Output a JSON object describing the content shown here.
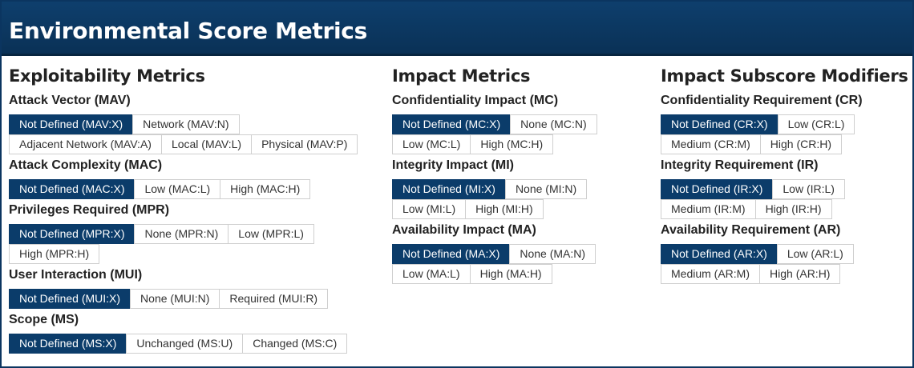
{
  "title": "Environmental Score Metrics",
  "columns": [
    {
      "heading": "Exploitability Metrics",
      "metrics": [
        {
          "label": "Attack Vector (MAV)",
          "rows": [
            [
              "Not Defined (MAV:X)",
              "Network (MAV:N)"
            ],
            [
              "Adjacent Network (MAV:A)",
              "Local (MAV:L)",
              "Physical (MAV:P)"
            ]
          ]
        },
        {
          "label": "Attack Complexity (MAC)",
          "rows": [
            [
              "Not Defined (MAC:X)",
              "Low (MAC:L)",
              "High (MAC:H)"
            ]
          ]
        },
        {
          "label": "Privileges Required (MPR)",
          "rows": [
            [
              "Not Defined (MPR:X)",
              "None (MPR:N)",
              "Low (MPR:L)"
            ],
            [
              "High (MPR:H)"
            ]
          ]
        },
        {
          "label": "User Interaction (MUI)",
          "rows": [
            [
              "Not Defined (MUI:X)",
              "None (MUI:N)",
              "Required (MUI:R)"
            ]
          ]
        },
        {
          "label": "Scope (MS)",
          "rows": [
            [
              "Not Defined (MS:X)",
              "Unchanged (MS:U)",
              "Changed (MS:C)"
            ]
          ]
        }
      ]
    },
    {
      "heading": "Impact Metrics",
      "metrics": [
        {
          "label": "Confidentiality Impact (MC)",
          "rows": [
            [
              "Not Defined (MC:X)",
              "None (MC:N)"
            ],
            [
              "Low (MC:L)",
              "High (MC:H)"
            ]
          ]
        },
        {
          "label": "Integrity Impact (MI)",
          "rows": [
            [
              "Not Defined (MI:X)",
              "None (MI:N)"
            ],
            [
              "Low (MI:L)",
              "High (MI:H)"
            ]
          ]
        },
        {
          "label": "Availability Impact (MA)",
          "rows": [
            [
              "Not Defined (MA:X)",
              "None (MA:N)"
            ],
            [
              "Low (MA:L)",
              "High (MA:H)"
            ]
          ]
        }
      ]
    },
    {
      "heading": "Impact Subscore Modifiers",
      "metrics": [
        {
          "label": "Confidentiality Requirement (CR)",
          "rows": [
            [
              "Not Defined (CR:X)",
              "Low (CR:L)"
            ],
            [
              "Medium (CR:M)",
              "High (CR:H)"
            ]
          ]
        },
        {
          "label": "Integrity Requirement (IR)",
          "rows": [
            [
              "Not Defined (IR:X)",
              "Low (IR:L)"
            ],
            [
              "Medium (IR:M)",
              "High (IR:H)"
            ]
          ]
        },
        {
          "label": "Availability Requirement (AR)",
          "rows": [
            [
              "Not Defined (AR:X)",
              "Low (AR:L)"
            ],
            [
              "Medium (AR:M)",
              "High (AR:H)"
            ]
          ]
        }
      ]
    }
  ],
  "selected_option_index": 0,
  "colors": {
    "header": "#0b3c6a",
    "selected": "#0b3c6a",
    "border": "#cfcfcf"
  }
}
